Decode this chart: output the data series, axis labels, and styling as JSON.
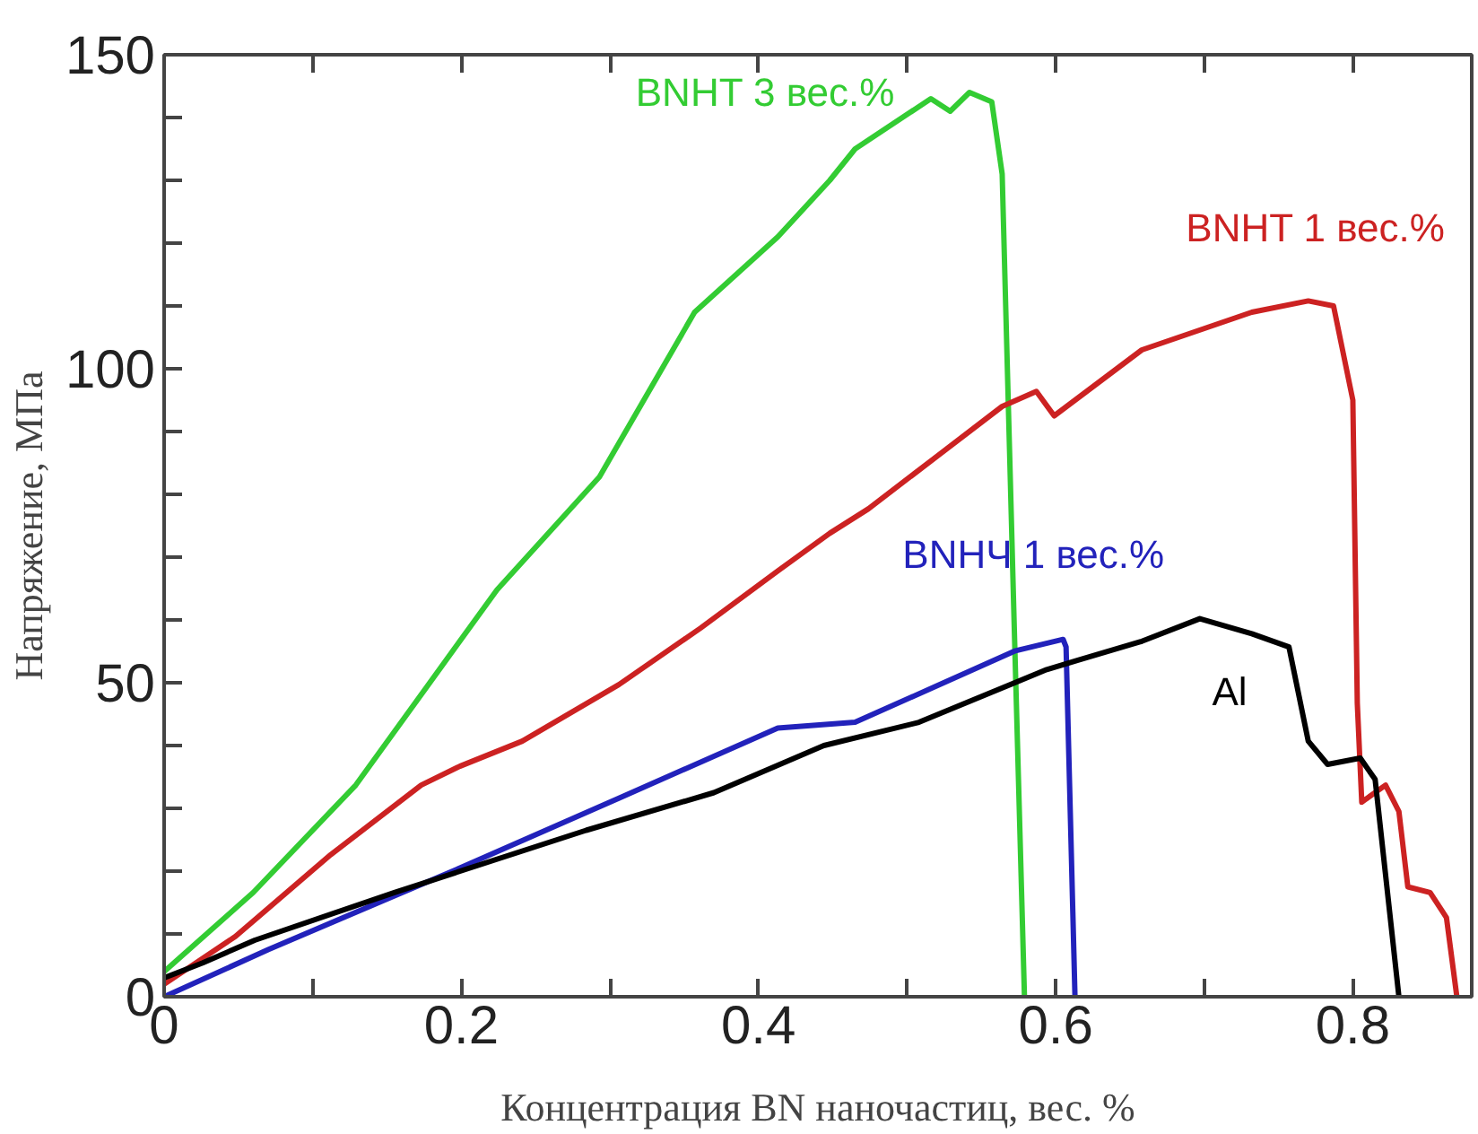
{
  "chart_data": {
    "type": "line",
    "xlabel": "Концентрация BN наночастиц, вес. %",
    "ylabel": "Напряжение, МПа",
    "xlim": [
      0,
      0.88
    ],
    "ylim": [
      0,
      150
    ],
    "xticks": [
      0,
      {
        "value": 0.1,
        "label": null
      },
      0.2,
      {
        "value": 0.3,
        "label": null
      },
      0.4,
      {
        "value": 0.5,
        "label": null
      },
      0.6,
      {
        "value": 0.7,
        "label": null
      },
      0.8
    ],
    "yticks": [
      0,
      {
        "value": 10,
        "label": null
      },
      {
        "value": 20,
        "label": null
      },
      {
        "value": 30,
        "label": null
      },
      {
        "value": 40,
        "label": null
      },
      50,
      {
        "value": 60,
        "label": null
      },
      {
        "value": 70,
        "label": null
      },
      {
        "value": 80,
        "label": null
      },
      {
        "value": 90,
        "label": null
      },
      100,
      {
        "value": 110,
        "label": null
      },
      {
        "value": 120,
        "label": null
      },
      {
        "value": 130,
        "label": null
      },
      {
        "value": 140,
        "label": null
      },
      150
    ],
    "grid": false,
    "legend": false,
    "marker": "none",
    "line_style": "solid",
    "series": [
      {
        "name": "BNHT 3 вес.%",
        "color": "#33cc33",
        "x": [
          0,
          0.06,
          0.129,
          0.224,
          0.293,
          0.357,
          0.413,
          0.448,
          0.465,
          0.516,
          0.529,
          0.542,
          0.557,
          0.564,
          0.572,
          0.579
        ],
        "values": [
          4,
          16.6,
          33.7,
          64.8,
          82.8,
          109,
          121,
          130,
          135,
          143,
          141,
          144,
          142.5,
          131,
          60,
          0
        ]
      },
      {
        "name": "BNHT 1 вес.%",
        "color": "#cc2222",
        "x": [
          0,
          0.048,
          0.112,
          0.173,
          0.199,
          0.241,
          0.306,
          0.361,
          0.413,
          0.448,
          0.474,
          0.564,
          0.587,
          0.599,
          0.658,
          0.732,
          0.77,
          0.787,
          0.8,
          0.803,
          0.806,
          0.822,
          0.831,
          0.837,
          0.852,
          0.863,
          0.87
        ],
        "values": [
          2,
          9.6,
          22.6,
          33.7,
          36.7,
          40.7,
          49.7,
          58.7,
          67.8,
          73.8,
          77.7,
          94,
          96.4,
          92.5,
          103,
          109,
          110.8,
          110,
          95,
          46.7,
          31,
          33.7,
          29.5,
          17.5,
          16.6,
          12.6,
          0
        ]
      },
      {
        "name": "BNHЧ 1 вес.%",
        "color": "#2222bb",
        "x": [
          0,
          0.07,
          0.199,
          0.306,
          0.413,
          0.465,
          0.573,
          0.605,
          0.607,
          0.613
        ],
        "values": [
          0,
          7.5,
          20.5,
          31.6,
          42.8,
          43.7,
          55.1,
          56.9,
          55.7,
          0
        ]
      },
      {
        "name": "Al",
        "color": "#000000",
        "x": [
          0,
          0.026,
          0.061,
          0.155,
          0.284,
          0.37,
          0.444,
          0.508,
          0.594,
          0.615,
          0.658,
          0.697,
          0.732,
          0.757,
          0.77,
          0.783,
          0.805,
          0.815,
          0.831
        ],
        "values": [
          3,
          5.4,
          9,
          16.6,
          26.5,
          32.5,
          40,
          43.7,
          52.1,
          53.6,
          56.6,
          60.2,
          57.8,
          55.7,
          40.7,
          37,
          38,
          34.6,
          0
        ]
      }
    ]
  }
}
